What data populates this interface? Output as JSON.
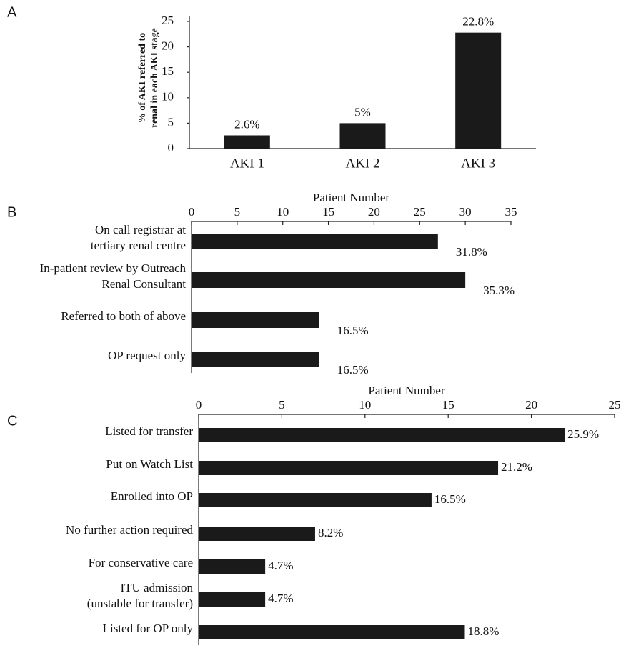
{
  "chart_data": [
    {
      "type": "bar",
      "orientation": "vertical",
      "panel": "A",
      "ylabel": [
        "% of AKI referred to",
        "renal in each AKI stage"
      ],
      "categories": [
        "AKI 1",
        "AKI 2",
        "AKI 3"
      ],
      "values": [
        2.6,
        5,
        22.8
      ],
      "value_labels": [
        "2.6%",
        "5%",
        "22.8%"
      ],
      "color": "#1a1a1a",
      "ylim": [
        0,
        25
      ],
      "yticks": [
        0,
        5,
        10,
        15,
        20,
        25
      ]
    },
    {
      "type": "bar",
      "orientation": "horizontal",
      "panel": "B",
      "xlabel": "Patient Number",
      "categories": [
        [
          "On call registrar at",
          "tertiary renal centre"
        ],
        [
          "In-patient review by Outreach",
          "Renal Consultant"
        ],
        [
          "Referred to both of above"
        ],
        [
          "OP request only"
        ]
      ],
      "values": [
        27,
        30,
        14,
        14
      ],
      "value_labels": [
        "31.8%",
        "35.3%",
        "16.5%",
        "16.5%"
      ],
      "color": "#1a1a1a",
      "xlim": [
        0,
        35
      ],
      "xticks": [
        0,
        5,
        10,
        15,
        20,
        25,
        30,
        35
      ]
    },
    {
      "type": "bar",
      "orientation": "horizontal",
      "panel": "C",
      "xlabel": "Patient Number",
      "categories": [
        [
          "Listed for transfer"
        ],
        [
          "Put on Watch List"
        ],
        [
          "Enrolled into OP"
        ],
        [
          "No further action required"
        ],
        [
          "For conservative care"
        ],
        [
          "ITU admission",
          "(unstable for transfer)"
        ],
        [
          "Listed for OP only"
        ]
      ],
      "values": [
        22,
        18,
        14,
        7,
        4,
        4,
        16
      ],
      "value_labels": [
        "25.9%",
        "21.2%",
        "16.5%",
        "8.2%",
        "4.7%",
        "4.7%",
        "18.8%"
      ],
      "color": "#1a1a1a",
      "xlim": [
        0,
        25
      ],
      "xticks": [
        0,
        5,
        10,
        15,
        20,
        25
      ]
    }
  ]
}
